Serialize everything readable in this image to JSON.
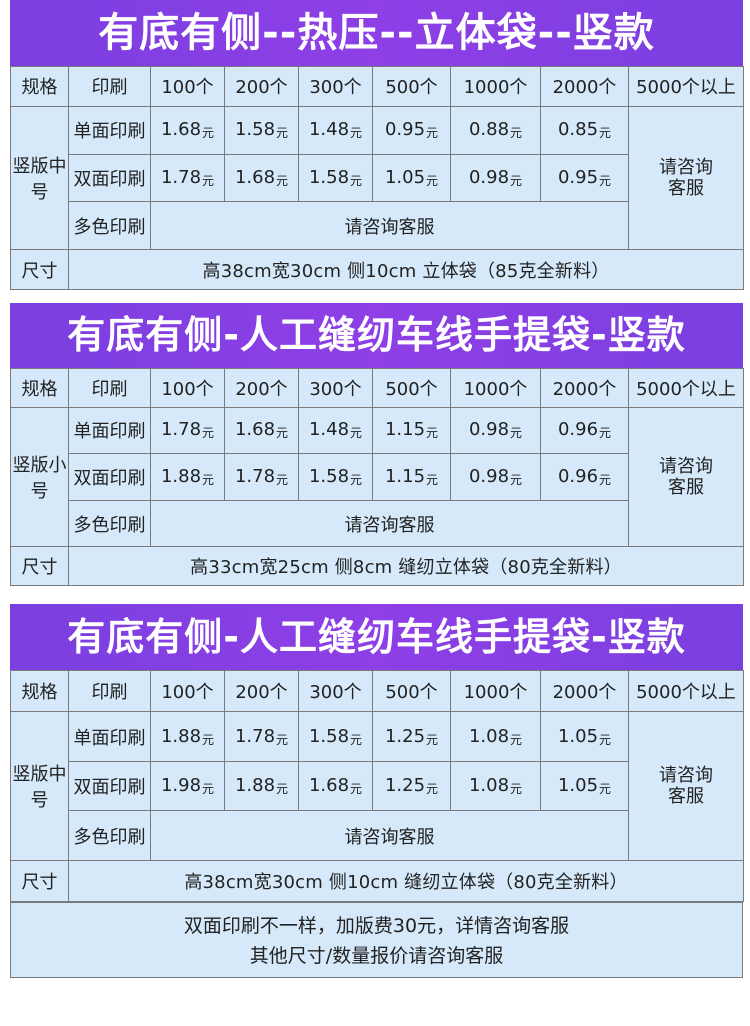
{
  "headers": {
    "spec": "规格",
    "print": "印刷",
    "qty": [
      "100个",
      "200个",
      "300个",
      "500个",
      "1000个",
      "2000个",
      "5000个以上"
    ]
  },
  "sections": [
    {
      "title": "有底有侧--热压--立体袋--竖款",
      "model": "竖版中号",
      "rows": [
        {
          "label": "单面印刷",
          "prices": [
            "1.68",
            "1.58",
            "1.48",
            "0.95",
            "0.88",
            "0.85"
          ]
        },
        {
          "label": "双面印刷",
          "prices": [
            "1.78",
            "1.68",
            "1.58",
            "1.05",
            "0.98",
            "0.95"
          ]
        }
      ],
      "multi_label": "多色印刷",
      "multi_text": "请咨询客服",
      "side_text": "请咨询客服",
      "size_label": "尺寸",
      "size_text": "高38cm宽30cm 侧10cm 立体袋（85克全新料）"
    },
    {
      "title": "有底有侧-人工缝纫车线手提袋-竖款",
      "model": "竖版小号",
      "rows": [
        {
          "label": "单面印刷",
          "prices": [
            "1.78",
            "1.68",
            "1.48",
            "1.15",
            "0.98",
            "0.96"
          ]
        },
        {
          "label": "双面印刷",
          "prices": [
            "1.88",
            "1.78",
            "1.58",
            "1.15",
            "0.98",
            "0.96"
          ]
        }
      ],
      "multi_label": "多色印刷",
      "multi_text": "请咨询客服",
      "side_text": "请咨询客服",
      "size_label": "尺寸",
      "size_text": "高33cm宽25cm 侧8cm 缝纫立体袋（80克全新料）"
    },
    {
      "title": "有底有侧-人工缝纫车线手提袋-竖款",
      "model": "竖版中号",
      "rows": [
        {
          "label": "单面印刷",
          "prices": [
            "1.88",
            "1.78",
            "1.58",
            "1.25",
            "1.08",
            "1.05"
          ]
        },
        {
          "label": "双面印刷",
          "prices": [
            "1.98",
            "1.88",
            "1.68",
            "1.25",
            "1.08",
            "1.05"
          ]
        }
      ],
      "multi_label": "多色印刷",
      "multi_text": "请咨询客服",
      "side_text": "请咨询客服",
      "size_label": "尺寸",
      "size_text": "高38cm宽30cm 侧10cm 缝纫立体袋（80克全新料）"
    }
  ],
  "unit": "元",
  "notes": [
    "双面印刷不一样，加版费30元，详情咨询客服",
    "其他尺寸/数量报价请咨询客服"
  ],
  "colors": {
    "banner": "#7b3fe0",
    "table_bg": "#d6e9fa",
    "red_text": "#d42020"
  }
}
